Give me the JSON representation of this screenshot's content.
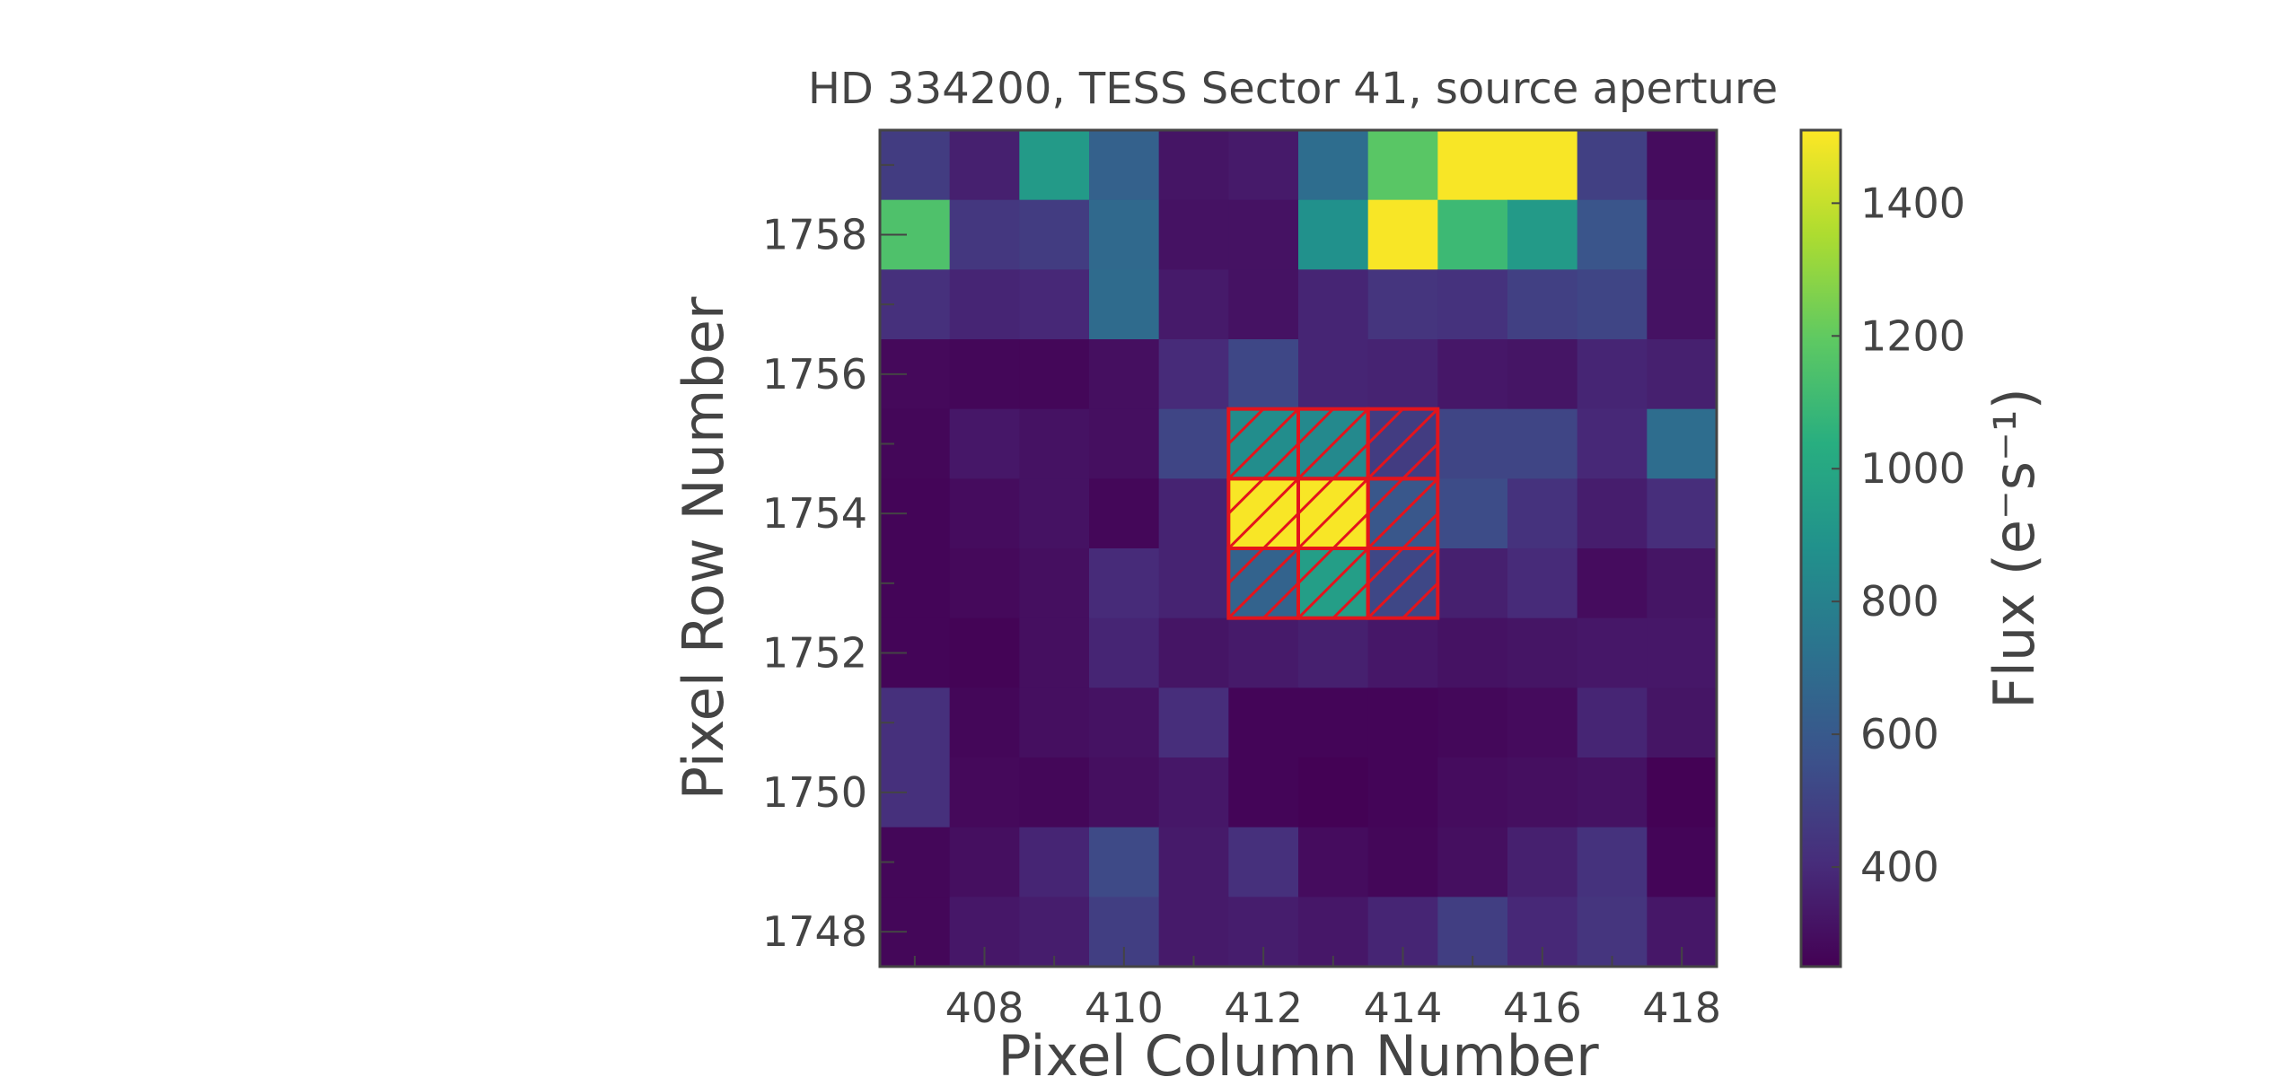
{
  "chart_data": {
    "type": "heatmap",
    "title": "HD 334200, TESS Sector 41, source aperture",
    "xlabel": "Pixel Column Number",
    "ylabel": "Pixel Row Number",
    "colorbar_label": "Flux (e⁻s⁻¹)",
    "colormap": "viridis",
    "x_range": [
      406.5,
      418.5
    ],
    "y_range": [
      1747.5,
      1759.5
    ],
    "x_ticks": [
      "408",
      "410",
      "412",
      "414",
      "416",
      "418"
    ],
    "y_ticks": [
      "1748",
      "1750",
      "1752",
      "1754",
      "1756",
      "1758"
    ],
    "x_tick_values": [
      408,
      410,
      412,
      414,
      416,
      418
    ],
    "y_tick_values": [
      1748,
      1750,
      1752,
      1754,
      1756,
      1758
    ],
    "colorbar_range": [
      250,
      1510
    ],
    "colorbar_ticks": [
      "400",
      "600",
      "800",
      "1000",
      "1200",
      "1400"
    ],
    "colorbar_tick_values": [
      400,
      600,
      800,
      1000,
      1200,
      1400
    ],
    "columns": [
      407,
      408,
      409,
      410,
      411,
      412,
      413,
      414,
      415,
      416,
      417,
      418
    ],
    "rows": [
      1759,
      1758,
      1757,
      1756,
      1755,
      1754,
      1753,
      1752,
      1751,
      1750,
      1749,
      1748
    ],
    "flux": [
      [
        470,
        360,
        930,
        640,
        320,
        340,
        700,
        1180,
        1500,
        1500,
        490,
        290
      ],
      [
        1150,
        450,
        470,
        680,
        310,
        310,
        880,
        1500,
        1100,
        930,
        580,
        310
      ],
      [
        420,
        380,
        390,
        690,
        340,
        310,
        380,
        440,
        430,
        490,
        510,
        310
      ],
      [
        280,
        270,
        270,
        300,
        400,
        520,
        380,
        370,
        330,
        320,
        380,
        360
      ],
      [
        270,
        330,
        310,
        300,
        510,
        860,
        840,
        470,
        510,
        510,
        390,
        700
      ],
      [
        265,
        290,
        310,
        270,
        370,
        1500,
        1500,
        590,
        540,
        430,
        350,
        410
      ],
      [
        265,
        280,
        300,
        400,
        370,
        650,
        950,
        520,
        360,
        400,
        290,
        320
      ],
      [
        265,
        260,
        300,
        380,
        320,
        340,
        360,
        330,
        310,
        320,
        330,
        330
      ],
      [
        420,
        270,
        300,
        310,
        410,
        265,
        265,
        265,
        275,
        285,
        380,
        320
      ],
      [
        420,
        280,
        270,
        300,
        330,
        265,
        255,
        265,
        290,
        300,
        310,
        255
      ],
      [
        270,
        300,
        380,
        530,
        340,
        420,
        290,
        270,
        300,
        360,
        430,
        265
      ],
      [
        270,
        330,
        350,
        480,
        340,
        350,
        330,
        380,
        480,
        390,
        440,
        330
      ]
    ],
    "aperture_pixels": [
      [
        412,
        1755
      ],
      [
        413,
        1755
      ],
      [
        414,
        1755
      ],
      [
        412,
        1754
      ],
      [
        413,
        1754
      ],
      [
        414,
        1754
      ],
      [
        412,
        1753
      ],
      [
        413,
        1753
      ],
      [
        414,
        1753
      ]
    ],
    "aperture_color": "#e3141c",
    "axis_color": "#444444"
  }
}
